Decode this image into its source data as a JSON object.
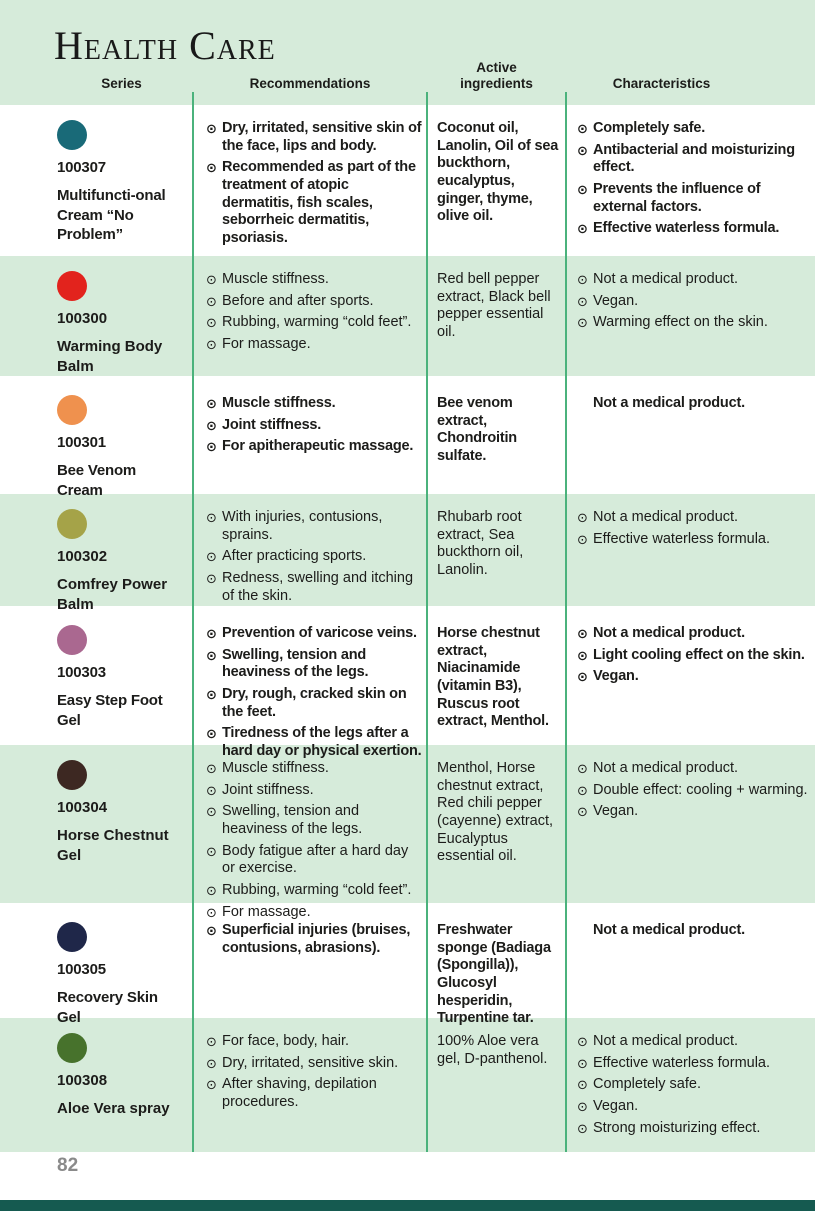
{
  "page": {
    "title": "Health Care",
    "page_number": "82",
    "bullet_glyph": "⊙",
    "colors": {
      "mint": "#d6ebda",
      "line_green": "#4bb27c",
      "footer_bar": "#155a50",
      "text": "#1c1c1a",
      "page_number": "#8a8a8a"
    }
  },
  "table": {
    "headers": [
      "Series",
      "Recommendations",
      "Active\ningredients",
      "Characteristics"
    ],
    "rows": [
      {
        "code": "100307",
        "name": "Multifuncti-onal Cream “No Problem”",
        "dot_color": "#196a78",
        "recommendations": [
          "Dry, irritated, sensitive skin of the face, lips and body.",
          "Recommended as part of the treatment of atopic dermatitis, fish scales, seborrheic dermatitis, psoriasis."
        ],
        "ingredients": "Coconut oil, Lanolin, Oil of sea buckthorn, eucalyptus, ginger, thyme, olive oil.",
        "characteristics": [
          "Completely safe.",
          "Antibacterial and moisturizing effect.",
          "Prevents the influence of external factors.",
          "Effective waterless formula."
        ],
        "characteristics_bulleted": true
      },
      {
        "code": "100300",
        "name": "Warming Body Balm",
        "dot_color": "#e2231d",
        "recommendations": [
          "Muscle stiffness.",
          "Before and after sports.",
          "Rubbing, warming “cold feet”.",
          "For massage."
        ],
        "ingredients": "Red bell pepper extract, Black bell pepper essential oil.",
        "characteristics": [
          "Not a medical product.",
          "Vegan.",
          "Warming effect on the skin."
        ],
        "characteristics_bulleted": true
      },
      {
        "code": "100301",
        "name": "Bee Venom Cream",
        "dot_color": "#ef914e",
        "recommendations": [
          "Muscle stiffness.",
          "Joint stiffness.",
          "For apitherapeutic massage."
        ],
        "ingredients": "Bee venom extract, Chondroitin sulfate.",
        "characteristics": [
          "Not a medical product."
        ],
        "characteristics_bulleted": false
      },
      {
        "code": "100302",
        "name": "Comfrey Power Balm",
        "dot_color": "#a5a348",
        "recommendations": [
          "With injuries, contusions, sprains.",
          "After practicing sports.",
          "Redness, swelling and itching of the skin."
        ],
        "ingredients": "Rhubarb root extract, Sea buckthorn oil, Lanolin.",
        "characteristics": [
          "Not a medical product.",
          "Effective waterless formula."
        ],
        "characteristics_bulleted": true
      },
      {
        "code": "100303",
        "name": "Easy Step Foot Gel",
        "dot_color": "#aa6890",
        "recommendations": [
          "Prevention of varicose veins.",
          "Swelling, tension and heaviness of the legs.",
          "Dry, rough, cracked skin on the feet.",
          "Tiredness of the legs after a hard day or physical exertion."
        ],
        "ingredients": "Horse chestnut extract, Niacinamide (vitamin B3), Ruscus root extract, Menthol.",
        "characteristics": [
          "Not a medical product.",
          "Light cooling effect on the skin.",
          "Vegan."
        ],
        "characteristics_bulleted": true
      },
      {
        "code": "100304",
        "name": "Horse Chestnut Gel",
        "dot_color": "#3d2822",
        "recommendations": [
          "Muscle stiffness.",
          "Joint stiffness.",
          "Swelling, tension and heaviness of the legs.",
          "Body fatigue after a hard day or exercise.",
          "Rubbing, warming “cold feet”.",
          "For massage."
        ],
        "ingredients": "Menthol, Horse chestnut extract, Red chili pepper (cayenne) extract, Eucalyptus essential oil.",
        "characteristics": [
          "Not a medical product.",
          "Double effect: cooling + warming.",
          "Vegan."
        ],
        "characteristics_bulleted": true
      },
      {
        "code": "100305",
        "name": "Recovery Skin Gel",
        "dot_color": "#1f2749",
        "recommendations": [
          "Superficial injuries (bruises, contusions, abrasions)."
        ],
        "ingredients": "Freshwater sponge (Badiaga (Spongilla)), Glucosyl hesperidin, Turpentine tar.",
        "characteristics": [
          "Not a medical product."
        ],
        "characteristics_bulleted": false
      },
      {
        "code": "100308",
        "name": "Aloe Vera spray",
        "dot_color": "#47722c",
        "recommendations": [
          "For face, body, hair.",
          "Dry, irritated, sensitive skin.",
          "After shaving, depilation procedures."
        ],
        "ingredients": "100% Aloe vera gel, D-panthenol.",
        "characteristics": [
          "Not a medical product.",
          "Effective waterless formula.",
          "Completely safe.",
          "Vegan.",
          "Strong moisturizing effect."
        ],
        "characteristics_bulleted": true
      }
    ]
  }
}
